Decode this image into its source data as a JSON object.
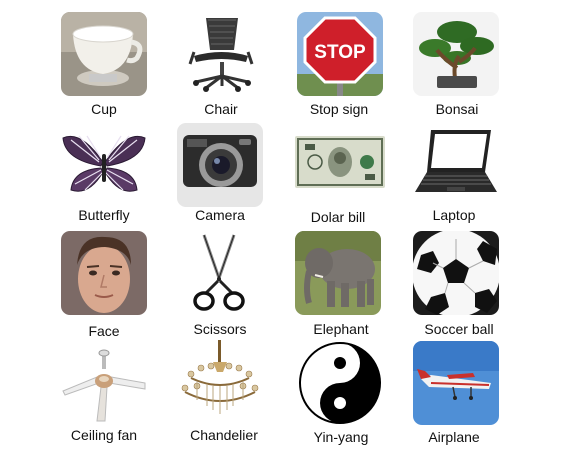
{
  "items": [
    {
      "label": "Cup",
      "icon": "cup-icon"
    },
    {
      "label": "Chair",
      "icon": "chair-icon"
    },
    {
      "label": "Stop sign",
      "icon": "stop-sign-icon",
      "sign_text": "STOP"
    },
    {
      "label": "Bonsai",
      "icon": "bonsai-icon"
    },
    {
      "label": "Butterfly",
      "icon": "butterfly-icon"
    },
    {
      "label": "Camera",
      "icon": "camera-icon"
    },
    {
      "label": "Dolar bill",
      "icon": "dollar-bill-icon"
    },
    {
      "label": "Laptop",
      "icon": "laptop-icon"
    },
    {
      "label": "Face",
      "icon": "face-icon"
    },
    {
      "label": "Scissors",
      "icon": "scissors-icon"
    },
    {
      "label": "Elephant",
      "icon": "elephant-icon"
    },
    {
      "label": "Soccer ball",
      "icon": "soccer-ball-icon"
    },
    {
      "label": "Ceiling fan",
      "icon": "ceiling-fan-icon"
    },
    {
      "label": "Chandelier",
      "icon": "chandelier-icon"
    },
    {
      "label": "Yin-yang",
      "icon": "yin-yang-icon"
    },
    {
      "label": "Airplane",
      "icon": "airplane-icon"
    }
  ]
}
